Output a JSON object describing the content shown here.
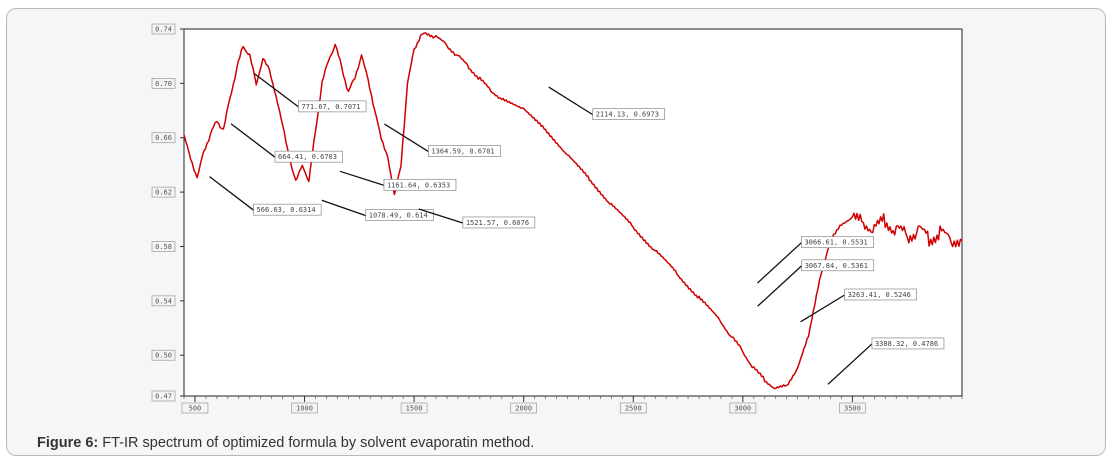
{
  "figure": {
    "caption_label": "Figure 6:",
    "caption_text": "FT-IR spectrum of optimized formula by solvent evaporatin method."
  },
  "chart_data": {
    "type": "line",
    "title": "",
    "xlabel": "",
    "ylabel": "",
    "xlim": [
      450,
      4000
    ],
    "ylim": [
      0.47,
      0.74
    ],
    "x_ticks": [
      500,
      1000,
      1500,
      2000,
      2500,
      3000,
      3500
    ],
    "x_tick_labels": [
      "500",
      "1000",
      "1500",
      "2000",
      "2500",
      "3000",
      "3500"
    ],
    "y_ticks": [
      0.74,
      0.7,
      0.66,
      0.62,
      0.58,
      0.54,
      0.5,
      0.47
    ],
    "y_tick_labels": [
      "0.74",
      "0.70",
      "0.66",
      "0.62",
      "0.58",
      "0.54",
      "0.50",
      "0.47"
    ],
    "series": [
      {
        "name": "FT-IR spectrum",
        "color": "#d00000",
        "x": [
          450,
          480,
          510,
          540,
          570,
          600,
          630,
          660,
          690,
          720,
          750,
          780,
          810,
          840,
          870,
          900,
          930,
          960,
          990,
          1020,
          1050,
          1080,
          1110,
          1140,
          1170,
          1200,
          1230,
          1260,
          1290,
          1320,
          1350,
          1380,
          1410,
          1440,
          1470,
          1500,
          1530,
          1560,
          1600,
          1650,
          1700,
          1750,
          1800,
          1850,
          1900,
          2000,
          2100,
          2200,
          2300,
          2400,
          2500,
          2600,
          2700,
          2800,
          2900,
          2950,
          3000,
          3050,
          3100,
          3150,
          3200,
          3250,
          3300,
          3350,
          3400,
          3450,
          3500,
          3550,
          3600,
          3650,
          3700,
          3750,
          3800,
          3850,
          3900,
          3950,
          4000
        ],
        "y": [
          0.662,
          0.645,
          0.63,
          0.65,
          0.662,
          0.673,
          0.665,
          0.69,
          0.71,
          0.728,
          0.72,
          0.7,
          0.718,
          0.71,
          0.69,
          0.67,
          0.645,
          0.628,
          0.64,
          0.628,
          0.665,
          0.7,
          0.718,
          0.728,
          0.712,
          0.693,
          0.705,
          0.72,
          0.703,
          0.68,
          0.66,
          0.645,
          0.618,
          0.64,
          0.7,
          0.725,
          0.735,
          0.737,
          0.734,
          0.728,
          0.72,
          0.712,
          0.703,
          0.695,
          0.688,
          0.682,
          0.665,
          0.648,
          0.629,
          0.611,
          0.594,
          0.577,
          0.56,
          0.542,
          0.525,
          0.513,
          0.503,
          0.49,
          0.482,
          0.475,
          0.478,
          0.49,
          0.515,
          0.555,
          0.585,
          0.596,
          0.602,
          0.597,
          0.593,
          0.599,
          0.592,
          0.588,
          0.592,
          0.586,
          0.59,
          0.585,
          0.584
        ]
      }
    ],
    "annotations": [
      {
        "label": "566.63, 0.6314",
        "x": 566.63,
        "y": 0.6314,
        "ly": 0.617
      },
      {
        "label": "664.41, 0.6703",
        "x": 664.41,
        "y": 0.6703,
        "ly": 0.656
      },
      {
        "label": "771.67, 0.7071",
        "x": 771.67,
        "y": 0.7071,
        "ly": 0.693
      },
      {
        "label": "1078.49, 0.614",
        "x": 1078.49,
        "y": 0.614,
        "ly": 0.613
      },
      {
        "label": "1161.64, 0.6353",
        "x": 1161.64,
        "y": 0.6353,
        "ly": 0.6353
      },
      {
        "label": "1364.59, 0.6701",
        "x": 1364.59,
        "y": 0.6701,
        "ly": 0.6601
      },
      {
        "label": "1521.57, 0.6076",
        "x": 1521.57,
        "y": 0.6076,
        "ly": 0.6076
      },
      {
        "label": "2114.13, 0.6973",
        "x": 2114.13,
        "y": 0.6973,
        "ly": 0.6873
      },
      {
        "label": "3066.61, 0.5531",
        "x": 3066.61,
        "y": 0.5531,
        "ly": 0.5931
      },
      {
        "label": "3067.84, 0.5361",
        "x": 3067.84,
        "y": 0.5361,
        "ly": 0.5761
      },
      {
        "label": "3263.41, 0.5246",
        "x": 3263.41,
        "y": 0.5246,
        "ly": 0.5546
      },
      {
        "label": "3388.32, 0.4786",
        "x": 3388.32,
        "y": 0.4786,
        "ly": 0.5186
      }
    ]
  }
}
